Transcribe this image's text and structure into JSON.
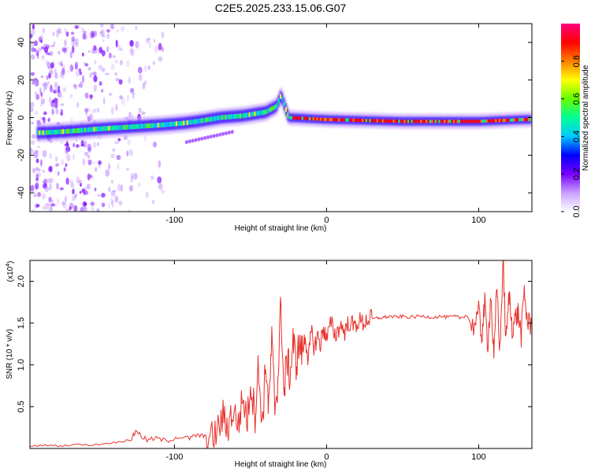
{
  "title": "C2E5.2025.233.15.06.G07",
  "chart_data": [
    {
      "type": "heatmap",
      "name": "spectrogram",
      "xlabel": "Height of straight line (km)",
      "ylabel": "Frequency (Hz)",
      "xlim": [
        -195,
        135
      ],
      "ylim": [
        -50,
        50
      ],
      "xticks": [
        -100,
        0,
        100
      ],
      "xtick_labels": [
        "-100",
        "0",
        "100"
      ],
      "yticks": [
        -40,
        -20,
        0,
        20,
        40
      ],
      "ytick_labels": [
        "-40",
        "-20",
        "0",
        "20",
        "40"
      ],
      "colorbar": {
        "label": "Normalized spectral amplitude",
        "range": [
          0,
          1
        ],
        "ticks": [
          0.0,
          0.2,
          0.4,
          0.6,
          0.8
        ],
        "tick_labels": [
          "0.0",
          "0.2",
          "0.4",
          "0.6",
          "0.8"
        ],
        "colors": [
          "#ffffff",
          "#c8a0ff",
          "#7a00ff",
          "#0000ff",
          "#00c8ff",
          "#00ff96",
          "#64ff00",
          "#ffff00",
          "#ff8000",
          "#ff0000",
          "#ff0080"
        ]
      },
      "ridge": {
        "x": [
          -185,
          -165,
          -150,
          -130,
          -110,
          -95,
          -85,
          -70,
          -55,
          -40,
          -33,
          -30,
          -25,
          0,
          50,
          100,
          130
        ],
        "y": [
          -8,
          -7,
          -6,
          -5,
          -4,
          -3,
          -2,
          0,
          1,
          3,
          6,
          12,
          0,
          -1,
          -2,
          -2,
          -1
        ]
      },
      "ridge_colors": [
        "#00ff96",
        "#64ff00",
        "#00c8ff",
        "#ffff00",
        "#00ff96",
        "#00c8ff",
        "#64ff00",
        "#00ff96",
        "#00c8ff",
        "#00ff96",
        "#64ff00",
        "#0000ff",
        "#ff0000",
        "#ff0000",
        "#ff0000",
        "#ff0000",
        "#ff0000"
      ]
    },
    {
      "type": "line",
      "name": "snr",
      "xlabel": "Height of straight line (km)",
      "ylabel": "SNR (10 * v/v)",
      "scale_label": "(x10",
      "scale_exp": "4",
      "scale_close": ")",
      "color": "#e8302a",
      "xlim": [
        -195,
        135
      ],
      "ylim": [
        0,
        2.25
      ],
      "xticks": [
        -100,
        0,
        100
      ],
      "xtick_labels": [
        "-100",
        "0",
        "100"
      ],
      "yticks": [
        0.5,
        1.0,
        1.5,
        2.0
      ],
      "ytick_labels": [
        "0.5",
        "1.0",
        "1.5",
        "2.0"
      ],
      "series": [
        {
          "name": "SNR",
          "x": [
            -195,
            -185,
            -175,
            -165,
            -155,
            -145,
            -135,
            -128,
            -125,
            -122,
            -118,
            -112,
            -105,
            -98,
            -90,
            -85,
            -80,
            -76,
            -72,
            -68,
            -65,
            -62,
            -58,
            -55,
            -52,
            -50,
            -47,
            -45,
            -42,
            -40,
            -38,
            -36,
            -34,
            -32,
            -30,
            -28,
            -26,
            -24,
            -22,
            -20,
            -18,
            -16,
            -14,
            -12,
            -10,
            -8,
            -6,
            -4,
            -2,
            0,
            3,
            6,
            9,
            12,
            15,
            18,
            21,
            24,
            27,
            30,
            34,
            38,
            42,
            46,
            50,
            55,
            60,
            65,
            70,
            75,
            80,
            85,
            88,
            92,
            96,
            100,
            102,
            104,
            106,
            108,
            110,
            112,
            114,
            116,
            118,
            120,
            122,
            124,
            126,
            128,
            130,
            132,
            135
          ],
          "y": [
            0.03,
            0.04,
            0.03,
            0.05,
            0.04,
            0.06,
            0.08,
            0.12,
            0.22,
            0.15,
            0.1,
            0.12,
            0.09,
            0.14,
            0.12,
            0.16,
            0.14,
            0.1,
            0.2,
            0.38,
            0.25,
            0.45,
            0.3,
            0.6,
            0.35,
            0.8,
            0.4,
            0.95,
            0.3,
            1.05,
            0.45,
            1.3,
            0.5,
            0.8,
            1.78,
            0.6,
            1.1,
            0.85,
            1.3,
            1.0,
            1.25,
            1.15,
            1.35,
            1.05,
            1.4,
            1.2,
            1.35,
            1.25,
            1.45,
            1.3,
            1.5,
            1.35,
            1.48,
            1.4,
            1.52,
            1.45,
            1.53,
            1.5,
            1.55,
            1.55,
            1.56,
            1.57,
            1.58,
            1.57,
            1.58,
            1.57,
            1.58,
            1.58,
            1.57,
            1.58,
            1.57,
            1.58,
            1.56,
            1.6,
            1.45,
            1.62,
            1.35,
            1.72,
            1.25,
            1.85,
            1.05,
            1.95,
            1.15,
            2.25,
            1.25,
            1.85,
            1.45,
            1.55,
            1.62,
            1.35,
            1.9,
            1.5,
            1.48
          ]
        }
      ]
    }
  ]
}
